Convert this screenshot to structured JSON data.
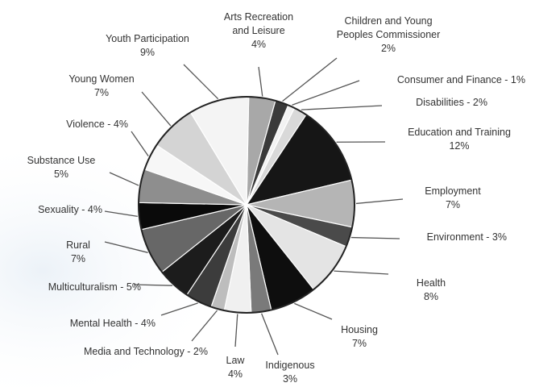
{
  "chart_data": {
    "type": "pie",
    "title": "",
    "slices": [
      {
        "label": [
          "Arts Recreation",
          "and Leisure"
        ],
        "value_label": "4%",
        "value": 4,
        "color": "#a8a8a8"
      },
      {
        "label": [
          "Children and Young",
          "Peoples Commissioner"
        ],
        "value_label": "2%",
        "value": 2,
        "color": "#3a3a3a"
      },
      {
        "label": [
          "Consumer and Finance - 1%"
        ],
        "value_label": "",
        "value": 1,
        "color": "#f2f2f2"
      },
      {
        "label": [
          "Disabilities - 2%"
        ],
        "value_label": "",
        "value": 2,
        "color": "#d9d9d9"
      },
      {
        "label": [
          "Education and Training"
        ],
        "value_label": "12%",
        "value": 12,
        "color": "#161616"
      },
      {
        "label": [
          "Employment"
        ],
        "value_label": "7%",
        "value": 7,
        "color": "#b5b5b5"
      },
      {
        "label": [
          "Environment - 3%"
        ],
        "value_label": "",
        "value": 3,
        "color": "#4a4a4a"
      },
      {
        "label": [
          "Health"
        ],
        "value_label": "8%",
        "value": 8,
        "color": "#e4e4e4"
      },
      {
        "label": [
          "Housing"
        ],
        "value_label": "7%",
        "value": 7,
        "color": "#0e0e0e"
      },
      {
        "label": [
          "Indigenous"
        ],
        "value_label": "3%",
        "value": 3,
        "color": "#7a7a7a"
      },
      {
        "label": [
          "Law"
        ],
        "value_label": "4%",
        "value": 4,
        "color": "#f0f0f0"
      },
      {
        "label": [
          "Media and Technology - 2%"
        ],
        "value_label": "",
        "value": 2,
        "color": "#bdbdbd"
      },
      {
        "label": [
          "Mental Health - 4%"
        ],
        "value_label": "",
        "value": 4,
        "color": "#3c3c3c"
      },
      {
        "label": [
          "Multiculturalism - 5%"
        ],
        "value_label": "",
        "value": 5,
        "color": "#1c1c1c"
      },
      {
        "label": [
          "Rural"
        ],
        "value_label": "7%",
        "value": 7,
        "color": "#676767"
      },
      {
        "label": [
          "Sexuality - 4%"
        ],
        "value_label": "",
        "value": 4,
        "color": "#0a0a0a"
      },
      {
        "label": [
          "Substance Use"
        ],
        "value_label": "5%",
        "value": 5,
        "color": "#8e8e8e"
      },
      {
        "label": [
          "Violence - 4%"
        ],
        "value_label": "",
        "value": 4,
        "color": "#f7f7f7"
      },
      {
        "label": [
          "Young Women"
        ],
        "value_label": "7%",
        "value": 7,
        "color": "#d4d4d4"
      },
      {
        "label": [
          "Youth Participation"
        ],
        "value_label": "9%",
        "value": 9,
        "color": "#f4f4f4"
      }
    ]
  }
}
